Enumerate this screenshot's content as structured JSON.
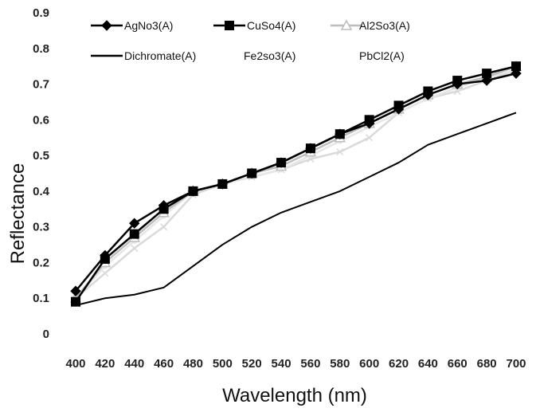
{
  "chart_data": {
    "type": "line",
    "xlabel": "Wavelength (nm)",
    "ylabel": "Reflectance",
    "x": [
      400,
      420,
      440,
      460,
      480,
      500,
      520,
      540,
      560,
      580,
      600,
      620,
      640,
      660,
      680,
      700
    ],
    "x_tick_labels": [
      "400",
      "420",
      "440",
      "460",
      "480",
      "500",
      "520",
      "540",
      "560",
      "580",
      "600",
      "620",
      "640",
      "660",
      "680",
      "700"
    ],
    "y_tick_labels": [
      "0",
      "0.1",
      "0.2",
      "0.3",
      "0.4",
      "0.5",
      "0.6",
      "0.7",
      "0.8",
      "0.9"
    ],
    "ylim": [
      0,
      0.9
    ],
    "xlim": [
      400,
      700
    ],
    "grid": false,
    "legend_position": "top",
    "series": [
      {
        "name": "AgNo3(A)",
        "color": "#000000",
        "marker": "diamond",
        "values": [
          0.12,
          0.22,
          0.31,
          0.36,
          0.4,
          0.42,
          0.45,
          0.48,
          0.52,
          0.56,
          0.59,
          0.63,
          0.67,
          0.7,
          0.71,
          0.73
        ]
      },
      {
        "name": "CuSo4(A)",
        "color": "#000000",
        "marker": "square",
        "values": [
          0.09,
          0.21,
          0.28,
          0.35,
          0.4,
          0.42,
          0.45,
          0.48,
          0.52,
          0.56,
          0.6,
          0.64,
          0.68,
          0.71,
          0.73,
          0.75
        ]
      },
      {
        "name": "Al2So3(A)",
        "color": "#bdbdbd",
        "marker": "triangle",
        "values": [
          0.1,
          0.2,
          0.27,
          0.34,
          0.4,
          0.42,
          0.45,
          0.47,
          0.51,
          0.55,
          0.59,
          0.63,
          0.67,
          0.7,
          0.72,
          0.75
        ]
      },
      {
        "name": "Dichromate(A)",
        "color": "#000000",
        "marker": "none",
        "values": [
          0.08,
          0.1,
          0.11,
          0.13,
          0.19,
          0.25,
          0.3,
          0.34,
          0.37,
          0.4,
          0.44,
          0.48,
          0.53,
          0.56,
          0.59,
          0.62
        ]
      },
      {
        "name": "Fe2so3(A)",
        "color": "#d9d9d9",
        "marker": "x",
        "values": [
          0.1,
          0.17,
          0.24,
          0.3,
          0.39,
          0.42,
          0.44,
          0.46,
          0.49,
          0.51,
          0.55,
          0.62,
          0.66,
          0.68,
          0.71,
          0.74
        ]
      },
      {
        "name": "PbCl2(A)",
        "color": "#e6e6e6",
        "marker": "circle",
        "values": [
          0.1,
          0.19,
          0.26,
          0.33,
          0.4,
          0.42,
          0.44,
          0.46,
          0.5,
          0.54,
          0.58,
          0.62,
          0.66,
          0.69,
          0.72,
          0.74
        ]
      }
    ]
  }
}
